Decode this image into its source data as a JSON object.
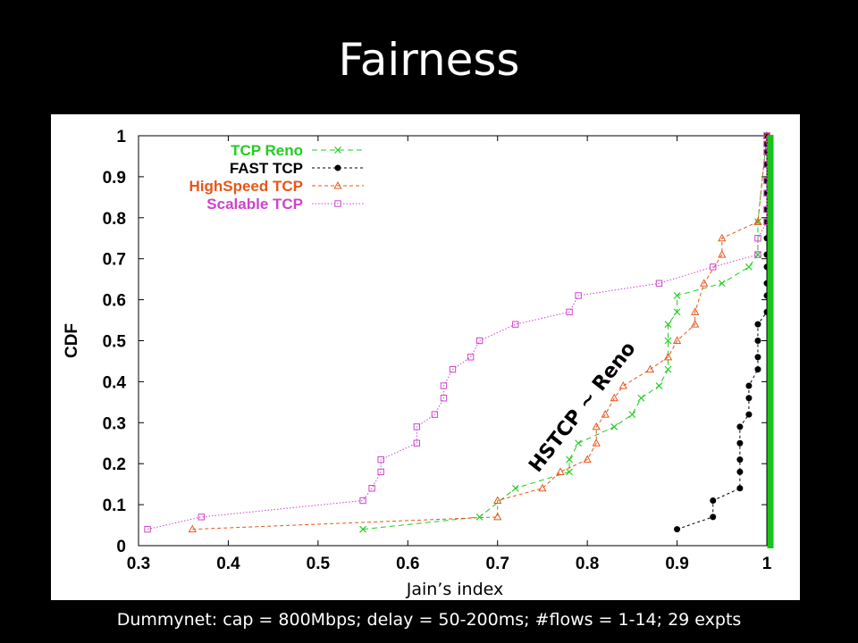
{
  "title": "Fairness",
  "footer": "Dummynet: cap = 800Mbps; delay = 50-200ms; #flows = 1-14; 29 expts",
  "chart_data": {
    "type": "line",
    "xlabel": "Jain’s index",
    "ylabel": "CDF",
    "xlim": [
      0.3,
      1
    ],
    "ylim": [
      0,
      1
    ],
    "xticks": [
      "0.3",
      "0.4",
      "0.5",
      "0.6",
      "0.7",
      "0.8",
      "0.9",
      "1"
    ],
    "yticks": [
      "0",
      "0.1",
      "0.2",
      "0.3",
      "0.4",
      "0.5",
      "0.6",
      "0.7",
      "0.8",
      "0.9",
      "1"
    ],
    "legend_position": "top-left",
    "annotation": "HSTCP ~ Reno",
    "series": [
      {
        "name": "TCP Reno",
        "color": "#22cc22",
        "marker": "x",
        "x": [
          0.55,
          0.68,
          0.72,
          0.78,
          0.78,
          0.79,
          0.83,
          0.85,
          0.86,
          0.88,
          0.89,
          0.89,
          0.89,
          0.9,
          0.9,
          0.95,
          0.98,
          0.99,
          0.99,
          1.0
        ],
        "y": [
          0.04,
          0.07,
          0.14,
          0.18,
          0.21,
          0.25,
          0.29,
          0.32,
          0.36,
          0.39,
          0.43,
          0.5,
          0.54,
          0.57,
          0.61,
          0.64,
          0.68,
          0.71,
          0.79,
          1.0
        ]
      },
      {
        "name": "FAST TCP",
        "color": "#000000",
        "marker": "circle",
        "x": [
          0.9,
          0.94,
          0.94,
          0.97,
          0.97,
          0.97,
          0.97,
          0.97,
          0.98,
          0.98,
          0.98,
          0.99,
          0.99,
          0.99,
          0.99,
          1.0,
          1.0,
          1.0,
          1.0,
          1.0,
          1.0,
          1.0,
          1.0,
          1.0,
          1.0,
          1.0,
          1.0,
          1.0,
          1.0
        ],
        "y": [
          0.04,
          0.07,
          0.11,
          0.14,
          0.18,
          0.21,
          0.25,
          0.29,
          0.32,
          0.36,
          0.39,
          0.43,
          0.46,
          0.5,
          0.54,
          0.57,
          0.61,
          0.64,
          0.68,
          0.71,
          0.75,
          0.79,
          0.82,
          0.86,
          0.89,
          0.93,
          0.96,
          0.98,
          1.0
        ]
      },
      {
        "name": "HighSpeed TCP",
        "color": "#e8561a",
        "marker": "triangle",
        "x": [
          0.36,
          0.7,
          0.7,
          0.75,
          0.77,
          0.8,
          0.81,
          0.81,
          0.82,
          0.83,
          0.84,
          0.87,
          0.89,
          0.9,
          0.92,
          0.92,
          0.93,
          0.95,
          0.95,
          0.99,
          1.0
        ],
        "y": [
          0.04,
          0.07,
          0.11,
          0.14,
          0.18,
          0.21,
          0.25,
          0.29,
          0.32,
          0.36,
          0.39,
          0.43,
          0.46,
          0.5,
          0.54,
          0.57,
          0.64,
          0.71,
          0.75,
          0.79,
          1.0
        ]
      },
      {
        "name": "Scalable TCP",
        "color": "#cc44cc",
        "marker": "square",
        "x": [
          0.31,
          0.37,
          0.55,
          0.56,
          0.57,
          0.57,
          0.61,
          0.61,
          0.63,
          0.64,
          0.64,
          0.65,
          0.67,
          0.68,
          0.72,
          0.78,
          0.79,
          0.88,
          0.94,
          0.99,
          0.99,
          1.0,
          1.0,
          1.0,
          1.0,
          1.0,
          1.0,
          1.0,
          1.0
        ],
        "y": [
          0.04,
          0.07,
          0.11,
          0.14,
          0.18,
          0.21,
          0.25,
          0.29,
          0.32,
          0.36,
          0.39,
          0.43,
          0.46,
          0.5,
          0.54,
          0.57,
          0.61,
          0.64,
          0.68,
          0.71,
          0.75,
          0.79,
          0.82,
          0.86,
          0.89,
          0.93,
          0.96,
          0.98,
          1.0
        ]
      }
    ],
    "vertical_bar": {
      "x": 1.0,
      "color": "#17c417"
    }
  }
}
